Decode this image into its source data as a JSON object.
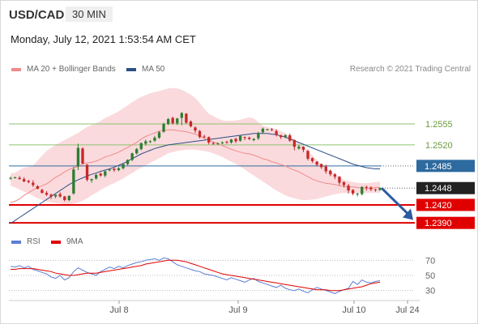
{
  "header": {
    "symbol": "USD/CAD",
    "timeframe": "30 MIN",
    "timestamp": "Monday, July 12, 2021 1:53:54 AM CET",
    "credit": "Research © 2021 Trading Central"
  },
  "legend": {
    "ma20": "MA 20 + Bollinger Bands",
    "ma50": "MA 50",
    "rsi": "RSI",
    "ma9": "9MA"
  },
  "colors": {
    "up_candle": "#2e7d32",
    "down_candle": "#c62828",
    "bollinger_fill": "#fadadd",
    "ma20": "#f08a8a",
    "ma50": "#2c4f86",
    "resistance": "#8dc26f",
    "pivot": "#2d6a9f",
    "support": "#e00000",
    "current": "#222222",
    "forecast_arrow": "#2d5aa0"
  },
  "chart_data": {
    "type": "candlestick",
    "symbol": "USD/CAD",
    "y_range": [
      1.237,
      1.264
    ],
    "x_ticks": [
      "Jul 8",
      "Jul 9",
      "Jul 10",
      "Jul 24"
    ],
    "levels": [
      {
        "value": 1.2555,
        "label": "1.2555",
        "kind": "resistance"
      },
      {
        "value": 1.252,
        "label": "1.2520",
        "kind": "resistance"
      },
      {
        "value": 1.2485,
        "label": "1.2485",
        "kind": "pivot"
      },
      {
        "value": 1.2448,
        "label": "1.2448",
        "kind": "current"
      },
      {
        "value": 1.242,
        "label": "1.2420",
        "kind": "support"
      },
      {
        "value": 1.239,
        "label": "1.2390",
        "kind": "support"
      }
    ],
    "forecast": {
      "from": 1.2448,
      "to": 1.2395
    },
    "close": [
      1.2465,
      1.2466,
      1.2463,
      1.2459,
      1.2458,
      1.2453,
      1.2447,
      1.244,
      1.2437,
      1.2434,
      1.2437,
      1.2434,
      1.2428,
      1.2435,
      1.2479,
      1.2515,
      1.2489,
      1.2462,
      1.2463,
      1.247,
      1.2469,
      1.2476,
      1.2479,
      1.2478,
      1.2481,
      1.2488,
      1.2495,
      1.2506,
      1.2513,
      1.2523,
      1.2526,
      1.2526,
      1.2532,
      1.2541,
      1.2555,
      1.2563,
      1.2556,
      1.2564,
      1.2573,
      1.2557,
      1.2551,
      1.2544,
      1.2533,
      1.2533,
      1.2524,
      1.2522,
      1.2523,
      1.2524,
      1.2524,
      1.2529,
      1.2526,
      1.2535,
      1.2532,
      1.253,
      1.253,
      1.254,
      1.2547,
      1.2546,
      1.2545,
      1.2537,
      1.2533,
      1.2536,
      1.2527,
      1.2517,
      1.2517,
      1.2512,
      1.2497,
      1.2493,
      1.2487,
      1.2483,
      1.2476,
      1.2471,
      1.2467,
      1.2457,
      1.2453,
      1.2444,
      1.2439,
      1.2439,
      1.245,
      1.2449,
      1.2446,
      1.2445,
      1.2448
    ],
    "open": [
      1.2464,
      1.2466,
      1.2465,
      1.2463,
      1.246,
      1.2457,
      1.2451,
      1.2445,
      1.244,
      1.2437,
      1.2434,
      1.2438,
      1.2434,
      1.2428,
      1.2439,
      1.2484,
      1.2514,
      1.2487,
      1.2461,
      1.2464,
      1.2472,
      1.2469,
      1.2478,
      1.248,
      1.2478,
      1.2481,
      1.2488,
      1.2495,
      1.2506,
      1.2513,
      1.2522,
      1.2526,
      1.2527,
      1.2532,
      1.2542,
      1.2555,
      1.2565,
      1.2556,
      1.2565,
      1.2572,
      1.2559,
      1.2549,
      1.2543,
      1.2534,
      1.2533,
      1.2523,
      1.2522,
      1.2523,
      1.2525,
      1.2524,
      1.253,
      1.2527,
      1.2533,
      1.2532,
      1.2528,
      1.2531,
      1.2541,
      1.2546,
      1.2546,
      1.2543,
      1.2536,
      1.2533,
      1.2536,
      1.2528,
      1.2514,
      1.2517,
      1.251,
      1.2498,
      1.2492,
      1.2488,
      1.2484,
      1.2477,
      1.2471,
      1.2467,
      1.2458,
      1.2452,
      1.2445,
      1.2439,
      1.2438,
      1.245,
      1.2449,
      1.2446,
      1.2445
    ],
    "high": [
      1.2467,
      1.2467,
      1.2468,
      1.2466,
      1.2462,
      1.2461,
      1.2453,
      1.2447,
      1.2443,
      1.2439,
      1.2437,
      1.2441,
      1.2435,
      1.2436,
      1.2483,
      1.2522,
      1.2516,
      1.2488,
      1.2464,
      1.2472,
      1.2474,
      1.2477,
      1.2481,
      1.2482,
      1.2483,
      1.2489,
      1.2496,
      1.2507,
      1.2515,
      1.2524,
      1.2529,
      1.2528,
      1.2535,
      1.2543,
      1.2557,
      1.2565,
      1.2567,
      1.2565,
      1.2575,
      1.2573,
      1.2561,
      1.2551,
      1.2545,
      1.2537,
      1.2534,
      1.2525,
      1.2524,
      1.2526,
      1.2527,
      1.253,
      1.2532,
      1.2536,
      1.2534,
      1.2534,
      1.2531,
      1.2542,
      1.2549,
      1.2547,
      1.2548,
      1.2546,
      1.2537,
      1.2538,
      1.2539,
      1.2529,
      1.252,
      1.2518,
      1.2512,
      1.2499,
      1.2493,
      1.2489,
      1.2487,
      1.2479,
      1.2473,
      1.2468,
      1.2459,
      1.2455,
      1.2446,
      1.244,
      1.2451,
      1.2452,
      1.2451,
      1.2447,
      1.2449
    ],
    "low": [
      1.2462,
      1.2464,
      1.2462,
      1.2458,
      1.2456,
      1.245,
      1.2446,
      1.2439,
      1.2435,
      1.243,
      1.2431,
      1.2432,
      1.2426,
      1.2426,
      1.2437,
      1.2478,
      1.2488,
      1.2459,
      1.2457,
      1.2462,
      1.2467,
      1.2466,
      1.2476,
      1.2475,
      1.2476,
      1.2479,
      1.2486,
      1.2493,
      1.2504,
      1.2511,
      1.2519,
      1.2523,
      1.2525,
      1.253,
      1.254,
      1.2553,
      1.2554,
      1.2553,
      1.2553,
      1.2555,
      1.2549,
      1.254,
      1.2531,
      1.2531,
      1.2521,
      1.252,
      1.252,
      1.2521,
      1.2522,
      1.2522,
      1.2523,
      1.2525,
      1.2528,
      1.2528,
      1.2526,
      1.2528,
      1.2539,
      1.2544,
      1.2543,
      1.2534,
      1.253,
      1.2531,
      1.2525,
      1.2511,
      1.2512,
      1.2508,
      1.2494,
      1.249,
      1.2484,
      1.248,
      1.2472,
      1.2468,
      1.2463,
      1.2453,
      1.2449,
      1.2439,
      1.2436,
      1.2434,
      1.2436,
      1.2444,
      1.2443,
      1.2442,
      1.2443
    ],
    "ma20": [
      1.2424,
      1.2426,
      1.243,
      1.2436,
      1.244,
      1.2445,
      1.2449,
      1.2452,
      1.2455,
      1.246,
      1.2466,
      1.247,
      1.2475,
      1.2479,
      1.2482,
      1.2484,
      1.2488,
      1.249,
      1.2491,
      1.2493,
      1.2496,
      1.25,
      1.2502,
      1.2505,
      1.2508,
      1.2512,
      1.2516,
      1.252,
      1.2524,
      1.253,
      1.2534,
      1.2537,
      1.254,
      1.2543,
      1.2544,
      1.2545,
      1.2545,
      1.2544,
      1.2543,
      1.2542,
      1.254,
      1.2538,
      1.2535,
      1.2531,
      1.2528,
      1.2525,
      1.2522,
      1.2519,
      1.2516,
      1.2513,
      1.251,
      1.2508,
      1.2506,
      1.2505,
      1.2503,
      1.25,
      1.2497,
      1.2495,
      1.2492,
      1.249,
      1.2487,
      1.2485,
      1.2481,
      1.2478,
      1.2475,
      1.2471,
      1.2467,
      1.2463,
      1.246,
      1.2458,
      1.2456,
      1.2455,
      1.2454,
      1.2452,
      1.2451,
      1.245,
      1.245,
      1.2449,
      1.2448,
      1.2448,
      1.2448,
      1.2449,
      1.2449
    ],
    "bb_upper": [
      1.2472,
      1.2474,
      1.2478,
      1.2482,
      1.2483,
      1.2486,
      1.2494,
      1.2502,
      1.251,
      1.2515,
      1.252,
      1.2524,
      1.2528,
      1.2532,
      1.2536,
      1.254,
      1.2545,
      1.255,
      1.2553,
      1.2556,
      1.256,
      1.2565,
      1.2568,
      1.2572,
      1.2576,
      1.2581,
      1.2586,
      1.2591,
      1.2596,
      1.26,
      1.2603,
      1.2606,
      1.2608,
      1.261,
      1.2612,
      1.2614,
      1.2615,
      1.2614,
      1.2612,
      1.2608,
      1.2604,
      1.2598,
      1.259,
      1.258,
      1.2572,
      1.2568,
      1.2564,
      1.2561,
      1.256,
      1.256,
      1.2561,
      1.2562,
      1.2564,
      1.2566,
      1.2564,
      1.2558,
      1.2552,
      1.255,
      1.2548,
      1.2546,
      1.2543,
      1.2539,
      1.2535,
      1.253,
      1.2524,
      1.2517,
      1.251,
      1.2503,
      1.2495,
      1.2488,
      1.2482,
      1.2476,
      1.2471,
      1.2466,
      1.2462,
      1.246,
      1.2458,
      1.2457,
      1.2456,
      1.2456,
      1.2457,
      1.2458,
      1.2459
    ],
    "bb_lower": [
      1.2452,
      1.2449,
      1.2446,
      1.2442,
      1.2439,
      1.2435,
      1.2431,
      1.2428,
      1.2426,
      1.2424,
      1.2423,
      1.2422,
      1.2421,
      1.2421,
      1.2422,
      1.2424,
      1.2427,
      1.2431,
      1.2436,
      1.244,
      1.2445,
      1.2449,
      1.2453,
      1.2456,
      1.246,
      1.2464,
      1.2469,
      1.2473,
      1.2478,
      1.2482,
      1.2486,
      1.249,
      1.2494,
      1.2498,
      1.2502,
      1.2506,
      1.2508,
      1.251,
      1.2511,
      1.2512,
      1.2512,
      1.2512,
      1.2511,
      1.251,
      1.2508,
      1.2506,
      1.2503,
      1.25,
      1.2496,
      1.2492,
      1.2488,
      1.2484,
      1.2479,
      1.2474,
      1.2469,
      1.2464,
      1.2459,
      1.2454,
      1.2449,
      1.2444,
      1.244,
      1.2436,
      1.2433,
      1.2431,
      1.2429,
      1.2428,
      1.2428,
      1.2429,
      1.243,
      1.2432,
      1.2434,
      1.2436,
      1.2438,
      1.2439,
      1.244,
      1.244,
      1.244,
      1.244,
      1.244,
      1.244,
      1.244,
      1.244,
      1.244
    ],
    "ma50": [
      1.2389,
      1.2394,
      1.2399,
      1.2404,
      1.2409,
      1.2414,
      1.2419,
      1.2424,
      1.2429,
      1.2434,
      1.2439,
      1.2444,
      1.2449,
      1.2454,
      1.2458,
      1.2462,
      1.2465,
      1.2468,
      1.2471,
      1.2473,
      1.2476,
      1.2478,
      1.248,
      1.2483,
      1.2486,
      1.2489,
      1.2493,
      1.2497,
      1.2501,
      1.2505,
      1.2508,
      1.2511,
      1.2514,
      1.2516,
      1.2518,
      1.252,
      1.2521,
      1.2522,
      1.2523,
      1.2524,
      1.2525,
      1.2526,
      1.2527,
      1.2528,
      1.2529,
      1.253,
      1.2531,
      1.2532,
      1.2533,
      1.2534,
      1.2535,
      1.2536,
      1.2537,
      1.2538,
      1.2539,
      1.2539,
      1.2539,
      1.2539,
      1.2538,
      1.2537,
      1.2535,
      1.2533,
      1.253,
      1.2527,
      1.2524,
      1.2521,
      1.2518,
      1.2515,
      1.2512,
      1.2509,
      1.2506,
      1.2503,
      1.25,
      1.2497,
      1.2494,
      1.2491,
      1.2488,
      1.2486,
      1.2484,
      1.2482,
      1.2481,
      1.248,
      1.248
    ],
    "rsi": {
      "y_range": [
        20,
        80
      ],
      "ticks": [
        70,
        50,
        30
      ],
      "rsi": [
        62,
        61,
        63,
        60,
        62,
        58,
        56,
        54,
        52,
        48,
        46,
        50,
        44,
        47,
        55,
        60,
        57,
        54,
        52,
        50,
        55,
        58,
        61,
        59,
        62,
        60,
        63,
        65,
        67,
        68,
        70,
        71,
        72,
        70,
        73,
        72,
        68,
        64,
        62,
        60,
        58,
        56,
        55,
        52,
        51,
        50,
        48,
        46,
        44,
        47,
        45,
        43,
        41,
        44,
        46,
        42,
        40,
        38,
        36,
        34,
        37,
        33,
        31,
        30,
        32,
        29,
        27,
        31,
        34,
        32,
        30,
        28,
        26,
        29,
        31,
        33,
        42,
        38,
        44,
        41,
        40,
        42,
        43
      ],
      "ma9": [
        58,
        58,
        59,
        59,
        59,
        59,
        58,
        57,
        56,
        55,
        53,
        52,
        51,
        50,
        50,
        51,
        52,
        53,
        53,
        53,
        54,
        55,
        56,
        57,
        58,
        59,
        60,
        61,
        62,
        63,
        65,
        66,
        67,
        68,
        69,
        70,
        70,
        70,
        69,
        68,
        66,
        64,
        62,
        60,
        58,
        56,
        54,
        52,
        51,
        50,
        49,
        48,
        47,
        46,
        45,
        44,
        43,
        42,
        41,
        40,
        39,
        38,
        37,
        36,
        35,
        34,
        33,
        32,
        31,
        31,
        31,
        30,
        30,
        30,
        31,
        32,
        33,
        34,
        35,
        37,
        39,
        40,
        41
      ]
    }
  }
}
